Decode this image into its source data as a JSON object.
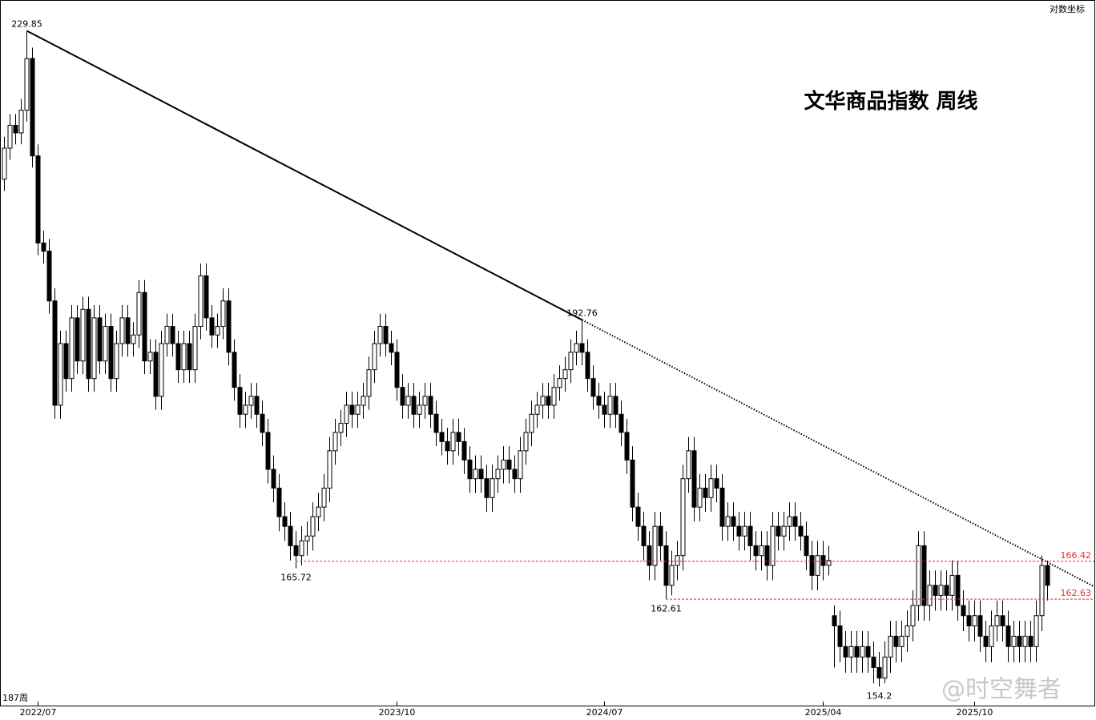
{
  "chart_data": {
    "type": "candlestick",
    "title": "文华商品指数  周线",
    "scale_label": "对数坐标",
    "period_label": "187周",
    "watermark": "@时空舞者",
    "log_scale": true,
    "ylim": [
      152.5,
      234.2
    ],
    "xticks": [
      {
        "value": 6,
        "label": "2022/07"
      },
      {
        "value": 70,
        "label": "2023/10"
      },
      {
        "value": 107,
        "label": "2024/07"
      },
      {
        "value": 146,
        "label": "2025/04"
      },
      {
        "value": 173,
        "label": "2025/10"
      }
    ],
    "point_labels": [
      229.85,
      192.76,
      165.72,
      162.61,
      154.2
    ],
    "levels": [
      166.42,
      162.63
    ],
    "up_color": "#ffffff",
    "down_color": "#000000",
    "level_color": "#e03030",
    "ohlc": [
      [
        210,
        215.5,
        208.5,
        214
      ],
      [
        214,
        218.5,
        212.5,
        217
      ],
      [
        217,
        218.5,
        214.5,
        216
      ],
      [
        216,
        220.5,
        214.5,
        219
      ],
      [
        219,
        229.85,
        217.5,
        226
      ],
      [
        226,
        227.5,
        211.5,
        213
      ],
      [
        213,
        214.5,
        200.5,
        202
      ],
      [
        202,
        203.5,
        199.5,
        201
      ],
      [
        201,
        202.5,
        193.5,
        195
      ],
      [
        195,
        196.5,
        181.5,
        183
      ],
      [
        183,
        191.5,
        181.5,
        190
      ],
      [
        190,
        191.5,
        184.5,
        186
      ],
      [
        186,
        194.5,
        184.5,
        193
      ],
      [
        193,
        194.5,
        186.5,
        188
      ],
      [
        188,
        195.5,
        186.5,
        194
      ],
      [
        194,
        195.5,
        184.5,
        186
      ],
      [
        186,
        194.5,
        184.5,
        193
      ],
      [
        193,
        194.5,
        186.5,
        188
      ],
      [
        188,
        193.5,
        186.5,
        192
      ],
      [
        192,
        193.5,
        184.5,
        186
      ],
      [
        186,
        191.5,
        184.5,
        190
      ],
      [
        190,
        194.5,
        188.5,
        193
      ],
      [
        193,
        194.5,
        188.5,
        190
      ],
      [
        190,
        192.5,
        188.5,
        191
      ],
      [
        191,
        197.5,
        189.5,
        196
      ],
      [
        196,
        197.5,
        186.5,
        188
      ],
      [
        188,
        190.5,
        186.5,
        189
      ],
      [
        189,
        190.5,
        182.5,
        184
      ],
      [
        184,
        191.5,
        182.5,
        190
      ],
      [
        190,
        193.5,
        188.5,
        192
      ],
      [
        192,
        193.5,
        188.5,
        190
      ],
      [
        190,
        191.5,
        185.5,
        187
      ],
      [
        187,
        191.5,
        185.5,
        190
      ],
      [
        190,
        191.5,
        185.5,
        187
      ],
      [
        187,
        193.5,
        185.5,
        192
      ],
      [
        192,
        199.5,
        190.5,
        198
      ],
      [
        198,
        199.5,
        191.5,
        193
      ],
      [
        193,
        194.5,
        189.5,
        191
      ],
      [
        191,
        193.5,
        189.5,
        192
      ],
      [
        192,
        196.5,
        190.5,
        195
      ],
      [
        195,
        196.5,
        187.5,
        189
      ],
      [
        189,
        190.5,
        183.5,
        185
      ],
      [
        185,
        186.5,
        180.5,
        182
      ],
      [
        182,
        184.5,
        180.5,
        183
      ],
      [
        183,
        185.5,
        181.5,
        184
      ],
      [
        184,
        185.5,
        180.5,
        182
      ],
      [
        182,
        183.5,
        178.5,
        180
      ],
      [
        180,
        181.5,
        174.5,
        176
      ],
      [
        176,
        177.5,
        172.5,
        174
      ],
      [
        174,
        175.5,
        169.5,
        171
      ],
      [
        171,
        172.5,
        168.5,
        170
      ],
      [
        170,
        171.5,
        166.5,
        168
      ],
      [
        168,
        169.5,
        165.72,
        167
      ],
      [
        167,
        170,
        166,
        168.5
      ],
      [
        168.5,
        170.5,
        167,
        169
      ],
      [
        169,
        172.5,
        167.5,
        171
      ],
      [
        171,
        173.5,
        169.5,
        172
      ],
      [
        172,
        175.5,
        170.5,
        174
      ],
      [
        174,
        179.5,
        172.5,
        178
      ],
      [
        178,
        181.5,
        176.5,
        180
      ],
      [
        180,
        182.5,
        178.5,
        181
      ],
      [
        181,
        184.5,
        179.5,
        183
      ],
      [
        183,
        184.5,
        180.5,
        182
      ],
      [
        182,
        184.5,
        180.5,
        183
      ],
      [
        183,
        185.5,
        181.5,
        184
      ],
      [
        184,
        188.5,
        182.5,
        187
      ],
      [
        187,
        191.5,
        185.5,
        190
      ],
      [
        190,
        193.5,
        188.5,
        192
      ],
      [
        192,
        193.5,
        188.5,
        190
      ],
      [
        190,
        191.5,
        187.5,
        189
      ],
      [
        189,
        190.5,
        183.5,
        185
      ],
      [
        185,
        186.5,
        181.5,
        183
      ],
      [
        183,
        185.5,
        181.5,
        184
      ],
      [
        184,
        185.5,
        180.5,
        182
      ],
      [
        182,
        184.5,
        180.5,
        183
      ],
      [
        183,
        185.5,
        181.5,
        184
      ],
      [
        184,
        185.5,
        180.5,
        182
      ],
      [
        182,
        183.5,
        178.5,
        180
      ],
      [
        180,
        181.5,
        177.5,
        179
      ],
      [
        179,
        180.5,
        176.5,
        178
      ],
      [
        178,
        181.5,
        176.5,
        180
      ],
      [
        180,
        181.5,
        177.5,
        179
      ],
      [
        179,
        180.5,
        175.5,
        177
      ],
      [
        177,
        178.5,
        173.5,
        175
      ],
      [
        175,
        177.5,
        173.5,
        176
      ],
      [
        176,
        177.5,
        173.5,
        175
      ],
      [
        175,
        176.5,
        171.5,
        173
      ],
      [
        173,
        176.5,
        171.5,
        175
      ],
      [
        175,
        177.5,
        173.5,
        176
      ],
      [
        176,
        178.5,
        174.5,
        177
      ],
      [
        177,
        178.5,
        174.5,
        176
      ],
      [
        176,
        177.5,
        173.5,
        175
      ],
      [
        175,
        179.5,
        173.5,
        178
      ],
      [
        178,
        181.5,
        176.5,
        180
      ],
      [
        180,
        183.5,
        178.5,
        182
      ],
      [
        182,
        184.5,
        180.5,
        183
      ],
      [
        183,
        185.5,
        181.5,
        184
      ],
      [
        184,
        185.5,
        181.5,
        183
      ],
      [
        183,
        186.5,
        181.5,
        185
      ],
      [
        185,
        187.5,
        183.5,
        186
      ],
      [
        186,
        188.5,
        184.5,
        187
      ],
      [
        187,
        190.5,
        185.5,
        189
      ],
      [
        189,
        191.5,
        187.5,
        190
      ],
      [
        190,
        192.76,
        187.5,
        189
      ],
      [
        189,
        190.5,
        184.5,
        186
      ],
      [
        186,
        187.5,
        182.5,
        184
      ],
      [
        184,
        185.5,
        181.5,
        183
      ],
      [
        183,
        184.5,
        180.5,
        182
      ],
      [
        182,
        185.5,
        180.5,
        184
      ],
      [
        184,
        185.5,
        180.5,
        182
      ],
      [
        182,
        183.5,
        178.5,
        180
      ],
      [
        180,
        181.5,
        175.5,
        177
      ],
      [
        177,
        178.5,
        170.5,
        172
      ],
      [
        172,
        173.5,
        168.5,
        170
      ],
      [
        170,
        171.5,
        166.5,
        168
      ],
      [
        168,
        169.5,
        164.5,
        166
      ],
      [
        166,
        171.5,
        164.5,
        170
      ],
      [
        170,
        171.5,
        166.5,
        168
      ],
      [
        168,
        169.5,
        162.61,
        164
      ],
      [
        164,
        167.5,
        163,
        166
      ],
      [
        166,
        168.5,
        164.5,
        167
      ],
      [
        167,
        176.5,
        165.5,
        175
      ],
      [
        175,
        179.5,
        173.5,
        178
      ],
      [
        178,
        179.5,
        170.5,
        172
      ],
      [
        172,
        175.5,
        170.5,
        174
      ],
      [
        174,
        175.5,
        171.5,
        173
      ],
      [
        173,
        176.5,
        171.5,
        175
      ],
      [
        175,
        176.5,
        172.5,
        174
      ],
      [
        174,
        175.5,
        168.5,
        170
      ],
      [
        170,
        172.5,
        168.5,
        171
      ],
      [
        171,
        172.5,
        168.5,
        170
      ],
      [
        170,
        171.5,
        167.5,
        169
      ],
      [
        169,
        171.5,
        167.5,
        170
      ],
      [
        170,
        171.5,
        166.5,
        168
      ],
      [
        168,
        169.5,
        165.5,
        167
      ],
      [
        167,
        169.5,
        165.5,
        168
      ],
      [
        168,
        169.5,
        164.5,
        166
      ],
      [
        166,
        171.5,
        164.5,
        170
      ],
      [
        170,
        171.5,
        167.5,
        169
      ],
      [
        169,
        171.5,
        167.5,
        170
      ],
      [
        170,
        172.5,
        168.5,
        171
      ],
      [
        171,
        172.5,
        168.5,
        170
      ],
      [
        170,
        171.5,
        167.5,
        169
      ],
      [
        169,
        170.5,
        165.5,
        167
      ],
      [
        167,
        168.5,
        163.5,
        165
      ],
      [
        165,
        168.5,
        163.5,
        167
      ],
      [
        167,
        168.5,
        164.5,
        166
      ],
      [
        166,
        168,
        165,
        166.5
      ],
      [
        161,
        162,
        156,
        160
      ],
      [
        160,
        161.5,
        156.5,
        158
      ],
      [
        158,
        159.5,
        155.5,
        157
      ],
      [
        157,
        159.5,
        155.5,
        158
      ],
      [
        158,
        159.5,
        155.5,
        157
      ],
      [
        157,
        159.5,
        155.5,
        158
      ],
      [
        158,
        159.5,
        155.5,
        157
      ],
      [
        157,
        158.5,
        154.5,
        156
      ],
      [
        156,
        157.5,
        154.2,
        155
      ],
      [
        155,
        158.5,
        154.5,
        157
      ],
      [
        157,
        160.5,
        155.5,
        159
      ],
      [
        159,
        160.5,
        156.5,
        158
      ],
      [
        158,
        160.5,
        156.5,
        159
      ],
      [
        159,
        161.5,
        157.5,
        160
      ],
      [
        160,
        163.5,
        158.5,
        162
      ],
      [
        162,
        169.5,
        160.5,
        168
      ],
      [
        168,
        169.5,
        160.5,
        162
      ],
      [
        162,
        165.5,
        160.5,
        164
      ],
      [
        164,
        165.5,
        161.5,
        163
      ],
      [
        163,
        165.5,
        161.5,
        164
      ],
      [
        164,
        165.5,
        161.5,
        163
      ],
      [
        163,
        166.5,
        161.5,
        165
      ],
      [
        165,
        166.5,
        160.5,
        162
      ],
      [
        162,
        163.5,
        159.5,
        161
      ],
      [
        161,
        162.5,
        158.5,
        160
      ],
      [
        160,
        162.5,
        158.5,
        161
      ],
      [
        161,
        162.5,
        157.5,
        159
      ],
      [
        159,
        160.5,
        156.5,
        158
      ],
      [
        158,
        161.5,
        156.5,
        160
      ],
      [
        160,
        162.5,
        158.5,
        161
      ],
      [
        161,
        162.5,
        158.5,
        160
      ],
      [
        160,
        161.5,
        156.5,
        158
      ],
      [
        158,
        160.5,
        156.5,
        159
      ],
      [
        159,
        160.5,
        156.5,
        158
      ],
      [
        158,
        160.5,
        156.5,
        159
      ],
      [
        159,
        160.5,
        156.5,
        158
      ],
      [
        158,
        162.5,
        156.5,
        161
      ],
      [
        161,
        167,
        159.5,
        166
      ],
      [
        166,
        166.5,
        162.5,
        164
      ]
    ]
  }
}
